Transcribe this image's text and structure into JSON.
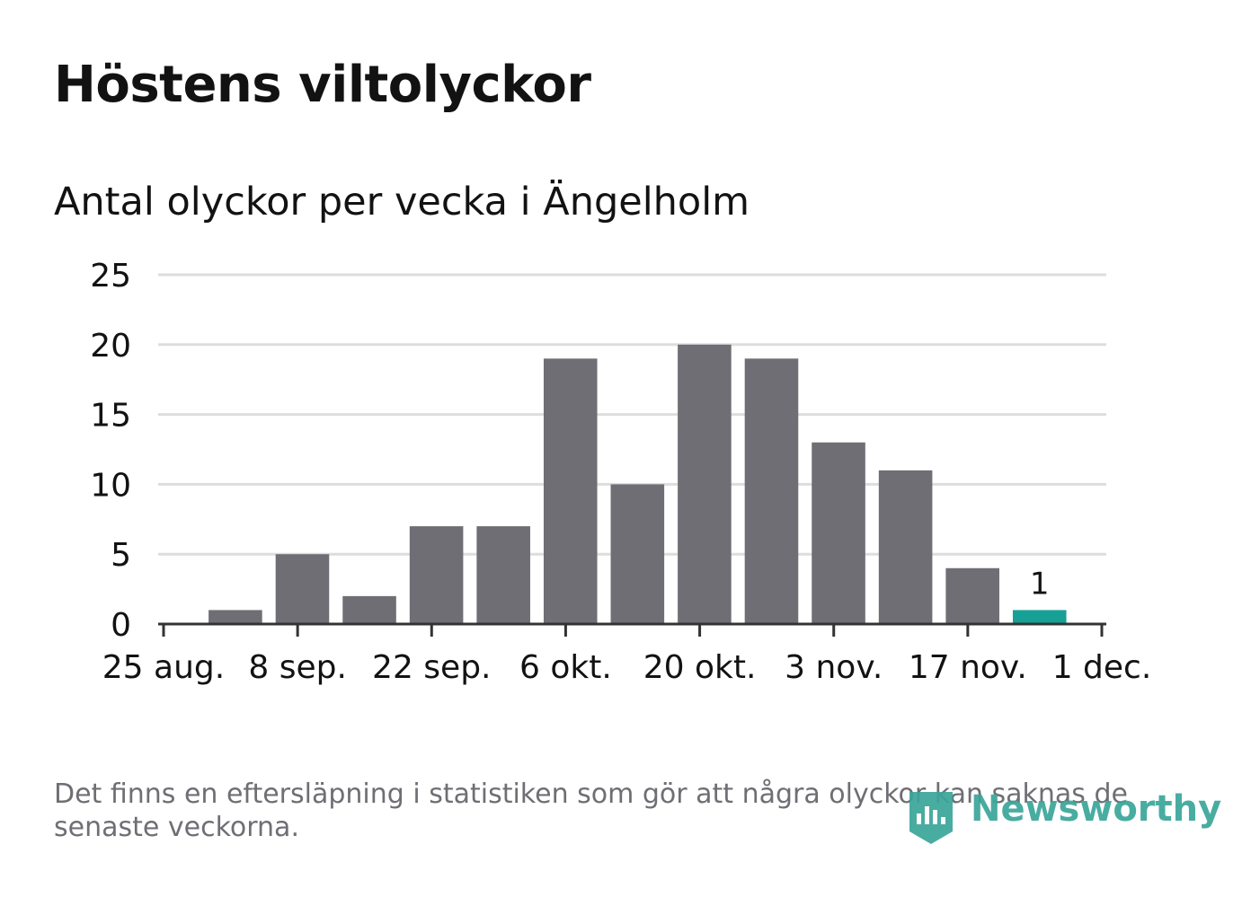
{
  "title": "Höstens viltolyckor",
  "subtitle": "Antal olyckor per vecka i Ängelholm",
  "footnote": "Det finns en eftersläpning i statistiken som gör att några olyckor kan saknas de senaste veckorna.",
  "logo": {
    "text": "Newsworthy",
    "icon": "newsworthy-logo-icon"
  },
  "colors": {
    "bar": "#6f6e74",
    "highlight": "#17a096",
    "grid": "#dddddd",
    "axis": "#333333",
    "text": "#121212"
  },
  "chart_data": {
    "type": "bar",
    "title": "Antal olyckor per vecka i Ängelholm",
    "xlabel": "",
    "ylabel": "",
    "ylim": [
      0,
      25
    ],
    "yticks": [
      0,
      5,
      10,
      15,
      20,
      25
    ],
    "xlim_days": [
      0,
      98
    ],
    "xticks": [
      {
        "label": "25 aug.",
        "day": 0
      },
      {
        "label": "8 sep.",
        "day": 14
      },
      {
        "label": "22 sep.",
        "day": 28
      },
      {
        "label": "6 okt.",
        "day": 42
      },
      {
        "label": "20 okt.",
        "day": 56
      },
      {
        "label": "3 nov.",
        "day": 70
      },
      {
        "label": "17 nov.",
        "day": 84
      },
      {
        "label": "1 dec.",
        "day": 98
      }
    ],
    "values": [
      1,
      5,
      2,
      7,
      7,
      19,
      10,
      20,
      19,
      13,
      11,
      4,
      1
    ],
    "week_start_day": 4,
    "highlight_index": 12,
    "data_labels": [
      {
        "index": 12,
        "text": "1"
      }
    ],
    "grid": true
  }
}
